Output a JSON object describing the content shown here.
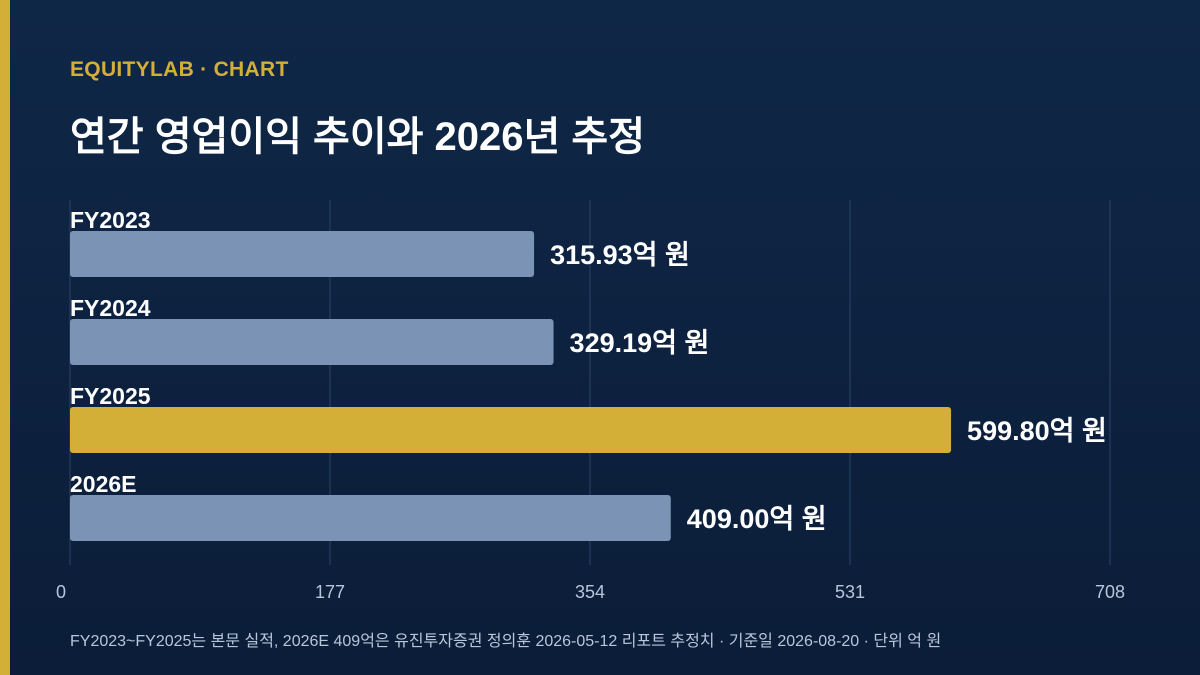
{
  "brand": "EQUITYLAB · CHART",
  "title": "연간 영업이익 추이와 2026년 추정",
  "footnote": "FY2023~FY2025는 본문 실적, 2026E 409억은 유진투자증권 정의훈 2026-05-12 리포트 추정치 · 기준일 2026-08-20 · 단위 억 원",
  "colors": {
    "accent": "#d4af37",
    "bar": "#7b93b4",
    "highlight": "#d4af37",
    "grid": "#2a4466",
    "tick": "#b9c6da"
  },
  "chart_data": {
    "type": "bar",
    "orientation": "horizontal",
    "categories": [
      "FY2023",
      "FY2024",
      "FY2025",
      "2026E"
    ],
    "values": [
      315.93,
      329.19,
      599.8,
      409.0
    ],
    "value_labels": [
      "315.93억 원",
      "329.19억 원",
      "599.80억 원",
      "409.00억 원"
    ],
    "highlight_index": 2,
    "xlim": [
      0,
      708
    ],
    "xticks": [
      0,
      177,
      354,
      531,
      708
    ],
    "grid": true
  }
}
